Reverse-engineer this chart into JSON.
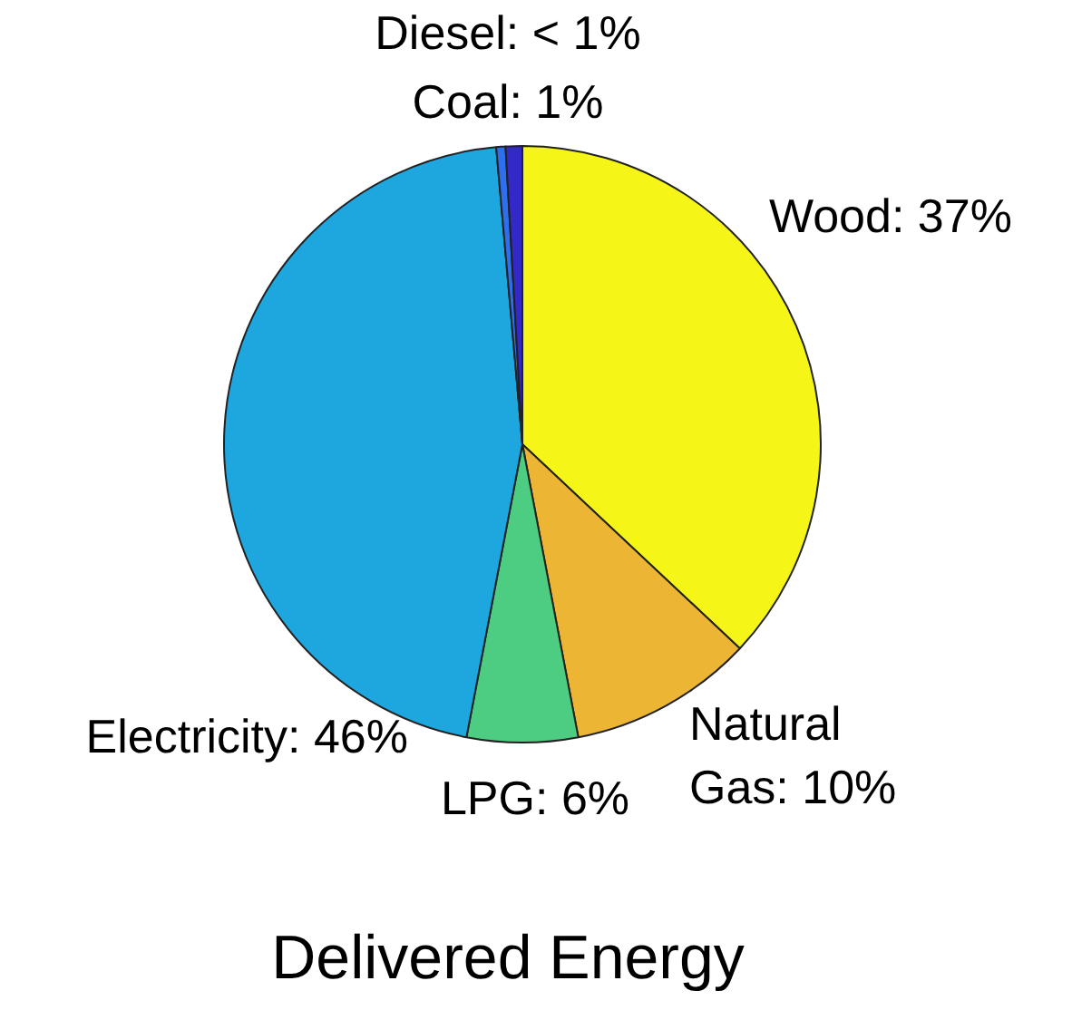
{
  "chart_data": {
    "type": "pie",
    "title": "Delivered Energy",
    "categories": [
      "Wood",
      "Natural Gas",
      "LPG",
      "Electricity",
      "Diesel",
      "Coal"
    ],
    "values": [
      37,
      10,
      6,
      45.6,
      0.5,
      0.9
    ],
    "value_labels": [
      "37%",
      "10%",
      "6%",
      "46%",
      "< 1%",
      "1%"
    ],
    "colors": [
      "#f5f518",
      "#edb534",
      "#4dcd82",
      "#1ea6df",
      "#2e6ff0",
      "#3329c8"
    ],
    "legend": false
  }
}
